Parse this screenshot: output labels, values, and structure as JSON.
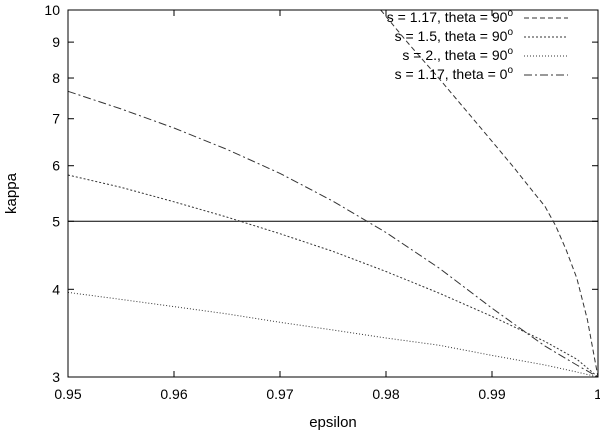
{
  "chart_data": {
    "type": "line",
    "xlabel": "epsilon",
    "ylabel": "kappa",
    "xlim": [
      0.95,
      1.0
    ],
    "ylim": [
      3,
      10
    ],
    "y_scale": "log",
    "x_tick_labels": [
      "0.95",
      "0.96",
      "0.97",
      "0.98",
      "0.99",
      "1"
    ],
    "x_ticks": [
      0.95,
      0.96,
      0.97,
      0.98,
      0.99,
      1.0
    ],
    "y_tick_labels": [
      "3",
      "4",
      "5",
      "6",
      "7",
      "8",
      "9",
      "10"
    ],
    "y_ticks": [
      3,
      4,
      5,
      6,
      7,
      8,
      9,
      10
    ],
    "legend_position": "top-right",
    "reference_line": {
      "y": 5,
      "style": "solid"
    },
    "series": [
      {
        "name": "s = 1.17, theta = 90",
        "name_text": "s = 1.17, theta = 90",
        "name_sup": "o",
        "dash": "dashed",
        "x": [
          0.9795,
          0.982,
          0.985,
          0.988,
          0.99,
          0.992,
          0.994,
          0.995,
          0.996,
          0.997,
          0.998,
          0.999,
          1.0
        ],
        "y": [
          10.0,
          9.0,
          7.99,
          7.06,
          6.5,
          5.98,
          5.48,
          5.25,
          4.93,
          4.55,
          4.15,
          3.62,
          3.0
        ]
      },
      {
        "name": "s = 1.5, theta = 90",
        "name_text": "s = 1.5, theta = 90",
        "name_sup": "o",
        "dash": "short-dashed",
        "x": [
          0.95,
          0.955,
          0.96,
          0.965,
          0.97,
          0.975,
          0.98,
          0.985,
          0.99,
          0.995,
          0.998,
          1.0
        ],
        "y": [
          5.82,
          5.59,
          5.33,
          5.07,
          4.8,
          4.53,
          4.24,
          3.95,
          3.66,
          3.37,
          3.18,
          3.0
        ]
      },
      {
        "name": "s = 2., theta = 90",
        "name_text": "s = 2., theta = 90",
        "name_sup": "o",
        "dash": "dotted",
        "x": [
          0.95,
          0.955,
          0.96,
          0.965,
          0.97,
          0.975,
          0.98,
          0.985,
          0.99,
          0.995,
          0.998,
          1.0
        ],
        "y": [
          3.96,
          3.87,
          3.78,
          3.69,
          3.59,
          3.5,
          3.41,
          3.33,
          3.22,
          3.12,
          3.05,
          3.0
        ]
      },
      {
        "name": "s = 1.17, theta = 0",
        "name_text": "s = 1.17, theta = 0",
        "name_sup": "o",
        "dash": "dash-dot",
        "x": [
          0.95,
          0.955,
          0.96,
          0.965,
          0.97,
          0.975,
          0.98,
          0.985,
          0.99,
          0.995,
          0.998,
          1.0
        ],
        "y": [
          7.66,
          7.23,
          6.79,
          6.33,
          5.85,
          5.34,
          4.82,
          4.29,
          3.76,
          3.32,
          3.12,
          3.0
        ]
      }
    ]
  }
}
